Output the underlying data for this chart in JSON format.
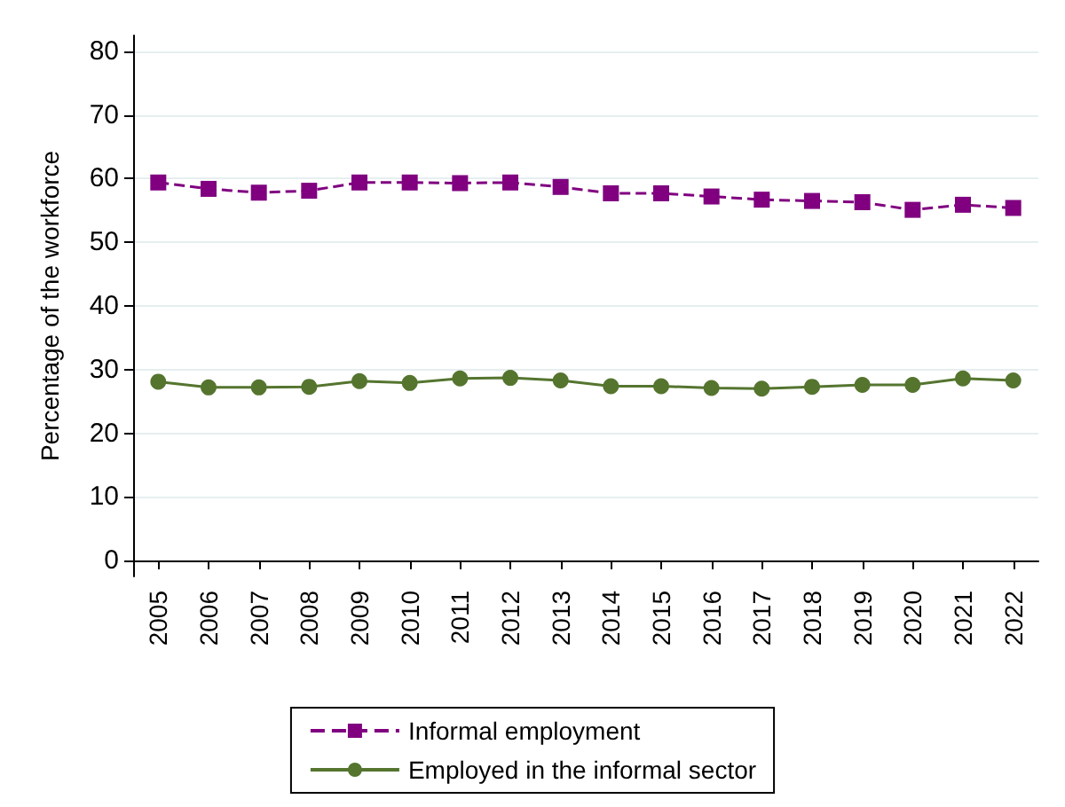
{
  "chart_data": {
    "type": "line",
    "ylabel": "Percentage of the workforce",
    "categories": [
      "2005",
      "2006",
      "2007",
      "2008",
      "2009",
      "2010",
      "2011",
      "2012",
      "2013",
      "2014",
      "2015",
      "2016",
      "2017",
      "2018",
      "2019",
      "2020",
      "2021",
      "2022"
    ],
    "series": [
      {
        "name": "Informal employment",
        "color": "#800080",
        "marker": "square",
        "line_style": "dashed",
        "values": [
          59.4,
          58.4,
          57.8,
          58.1,
          59.4,
          59.4,
          59.3,
          59.4,
          58.7,
          57.7,
          57.7,
          57.2,
          56.7,
          56.5,
          56.3,
          55.1,
          55.9,
          55.4
        ]
      },
      {
        "name": "Employed in the informal sector",
        "color": "#55752f",
        "marker": "circle",
        "line_style": "solid",
        "values": [
          28.1,
          27.2,
          27.2,
          27.3,
          28.2,
          27.9,
          28.6,
          28.7,
          28.3,
          27.4,
          27.4,
          27.1,
          27.0,
          27.3,
          27.6,
          27.6,
          28.6,
          28.3
        ]
      }
    ],
    "ylim": [
      -2.5,
      82.5
    ],
    "yticks": [
      0,
      10,
      20,
      30,
      40,
      50,
      60,
      70,
      80
    ],
    "grid": "y",
    "legend": "bottom"
  }
}
